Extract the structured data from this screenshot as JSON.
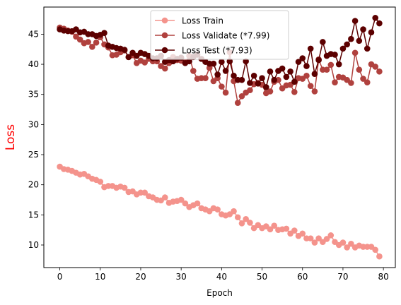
{
  "chart_data": {
    "type": "line",
    "xlabel": "Epoch",
    "ylabel": "Loss",
    "ylabel_color": "#ff0000",
    "xlim": [
      -3.95,
      82.95
    ],
    "ylim": [
      6.25,
      49.5
    ],
    "xticks": [
      0,
      10,
      20,
      30,
      40,
      50,
      60,
      70,
      80
    ],
    "yticks": [
      10,
      15,
      20,
      25,
      30,
      35,
      40,
      45
    ],
    "grid": false,
    "legend_position": "top-center",
    "x": [
      0,
      1,
      2,
      3,
      4,
      5,
      6,
      7,
      8,
      9,
      10,
      11,
      12,
      13,
      14,
      15,
      16,
      17,
      18,
      19,
      20,
      21,
      22,
      23,
      24,
      25,
      26,
      27,
      28,
      29,
      30,
      31,
      32,
      33,
      34,
      35,
      36,
      37,
      38,
      39,
      40,
      41,
      42,
      43,
      44,
      45,
      46,
      47,
      48,
      49,
      50,
      51,
      52,
      53,
      54,
      55,
      56,
      57,
      58,
      59,
      60,
      61,
      62,
      63,
      64,
      65,
      66,
      67,
      68,
      69,
      70,
      71,
      72,
      73,
      74,
      75,
      76,
      77,
      78,
      79
    ],
    "series": [
      {
        "name": "Loss Train",
        "color": "#f4938c",
        "values": [
          23.0,
          22.6,
          22.5,
          22.3,
          22.0,
          21.7,
          21.8,
          21.4,
          21.0,
          20.8,
          20.5,
          19.6,
          19.8,
          19.8,
          19.5,
          19.7,
          19.5,
          18.8,
          18.9,
          18.4,
          18.7,
          18.7,
          18.1,
          17.9,
          17.5,
          17.4,
          17.9,
          17.0,
          17.2,
          17.3,
          17.5,
          16.9,
          16.3,
          16.6,
          16.9,
          16.1,
          15.9,
          15.6,
          16.1,
          15.9,
          15.1,
          14.9,
          15.1,
          15.6,
          14.6,
          13.6,
          14.3,
          13.7,
          12.8,
          13.3,
          12.8,
          13.1,
          12.6,
          13.2,
          12.5,
          12.6,
          12.7,
          11.9,
          12.4,
          11.5,
          11.9,
          11.1,
          11.1,
          10.4,
          11.1,
          10.5,
          11.0,
          11.6,
          10.5,
          10.0,
          10.4,
          9.6,
          10.2,
          9.6,
          9.9,
          9.7,
          9.7,
          9.7,
          9.2,
          8.1
        ]
      },
      {
        "name": "Loss Validate (*7.99)",
        "color": "#b0413e",
        "values": [
          46.1,
          45.9,
          45.6,
          45.4,
          44.6,
          44.1,
          43.5,
          43.7,
          42.9,
          43.6,
          44.5,
          43.3,
          42.8,
          41.5,
          41.6,
          42.0,
          42.3,
          41.2,
          41.5,
          40.2,
          40.6,
          40.3,
          40.9,
          40.5,
          40.5,
          39.7,
          39.3,
          40.2,
          41.2,
          40.7,
          40.6,
          40.4,
          41.4,
          38.9,
          37.6,
          37.7,
          37.7,
          39.4,
          37.2,
          37.7,
          36.3,
          35.3,
          42.0,
          37.2,
          33.6,
          34.7,
          35.3,
          35.7,
          36.7,
          36.9,
          36.6,
          35.2,
          35.5,
          37.1,
          37.4,
          36.0,
          36.5,
          36.6,
          35.4,
          37.7,
          37.6,
          38.1,
          36.4,
          35.5,
          40.8,
          39.1,
          39.1,
          39.9,
          37.0,
          37.9,
          37.8,
          37.4,
          36.9,
          41.9,
          39.1,
          37.6,
          37.0,
          40.0,
          39.6,
          38.8
        ]
      },
      {
        "name": "Loss Test (*7.93)",
        "color": "#5c0000",
        "values": [
          45.8,
          45.6,
          45.5,
          45.5,
          45.8,
          45.3,
          45.4,
          45.0,
          45.0,
          44.7,
          44.9,
          45.2,
          43.1,
          42.9,
          42.7,
          42.6,
          42.4,
          41.2,
          41.9,
          41.4,
          41.9,
          41.7,
          41.4,
          41.0,
          41.0,
          41.4,
          40.4,
          40.7,
          40.5,
          40.9,
          41.1,
          40.2,
          40.5,
          41.2,
          41.6,
          40.9,
          40.4,
          40.1,
          40.1,
          38.3,
          40.4,
          38.9,
          40.5,
          38.1,
          37.4,
          37.4,
          40.5,
          36.9,
          38.1,
          36.8,
          37.7,
          36.2,
          38.8,
          37.4,
          38.9,
          39.3,
          37.9,
          38.8,
          37.1,
          40.4,
          41.0,
          39.7,
          42.6,
          38.4,
          40.7,
          43.7,
          41.4,
          41.7,
          41.6,
          40.0,
          42.6,
          43.3,
          44.2,
          47.2,
          43.9,
          45.8,
          42.6,
          45.3,
          47.7,
          46.8
        ]
      }
    ]
  }
}
